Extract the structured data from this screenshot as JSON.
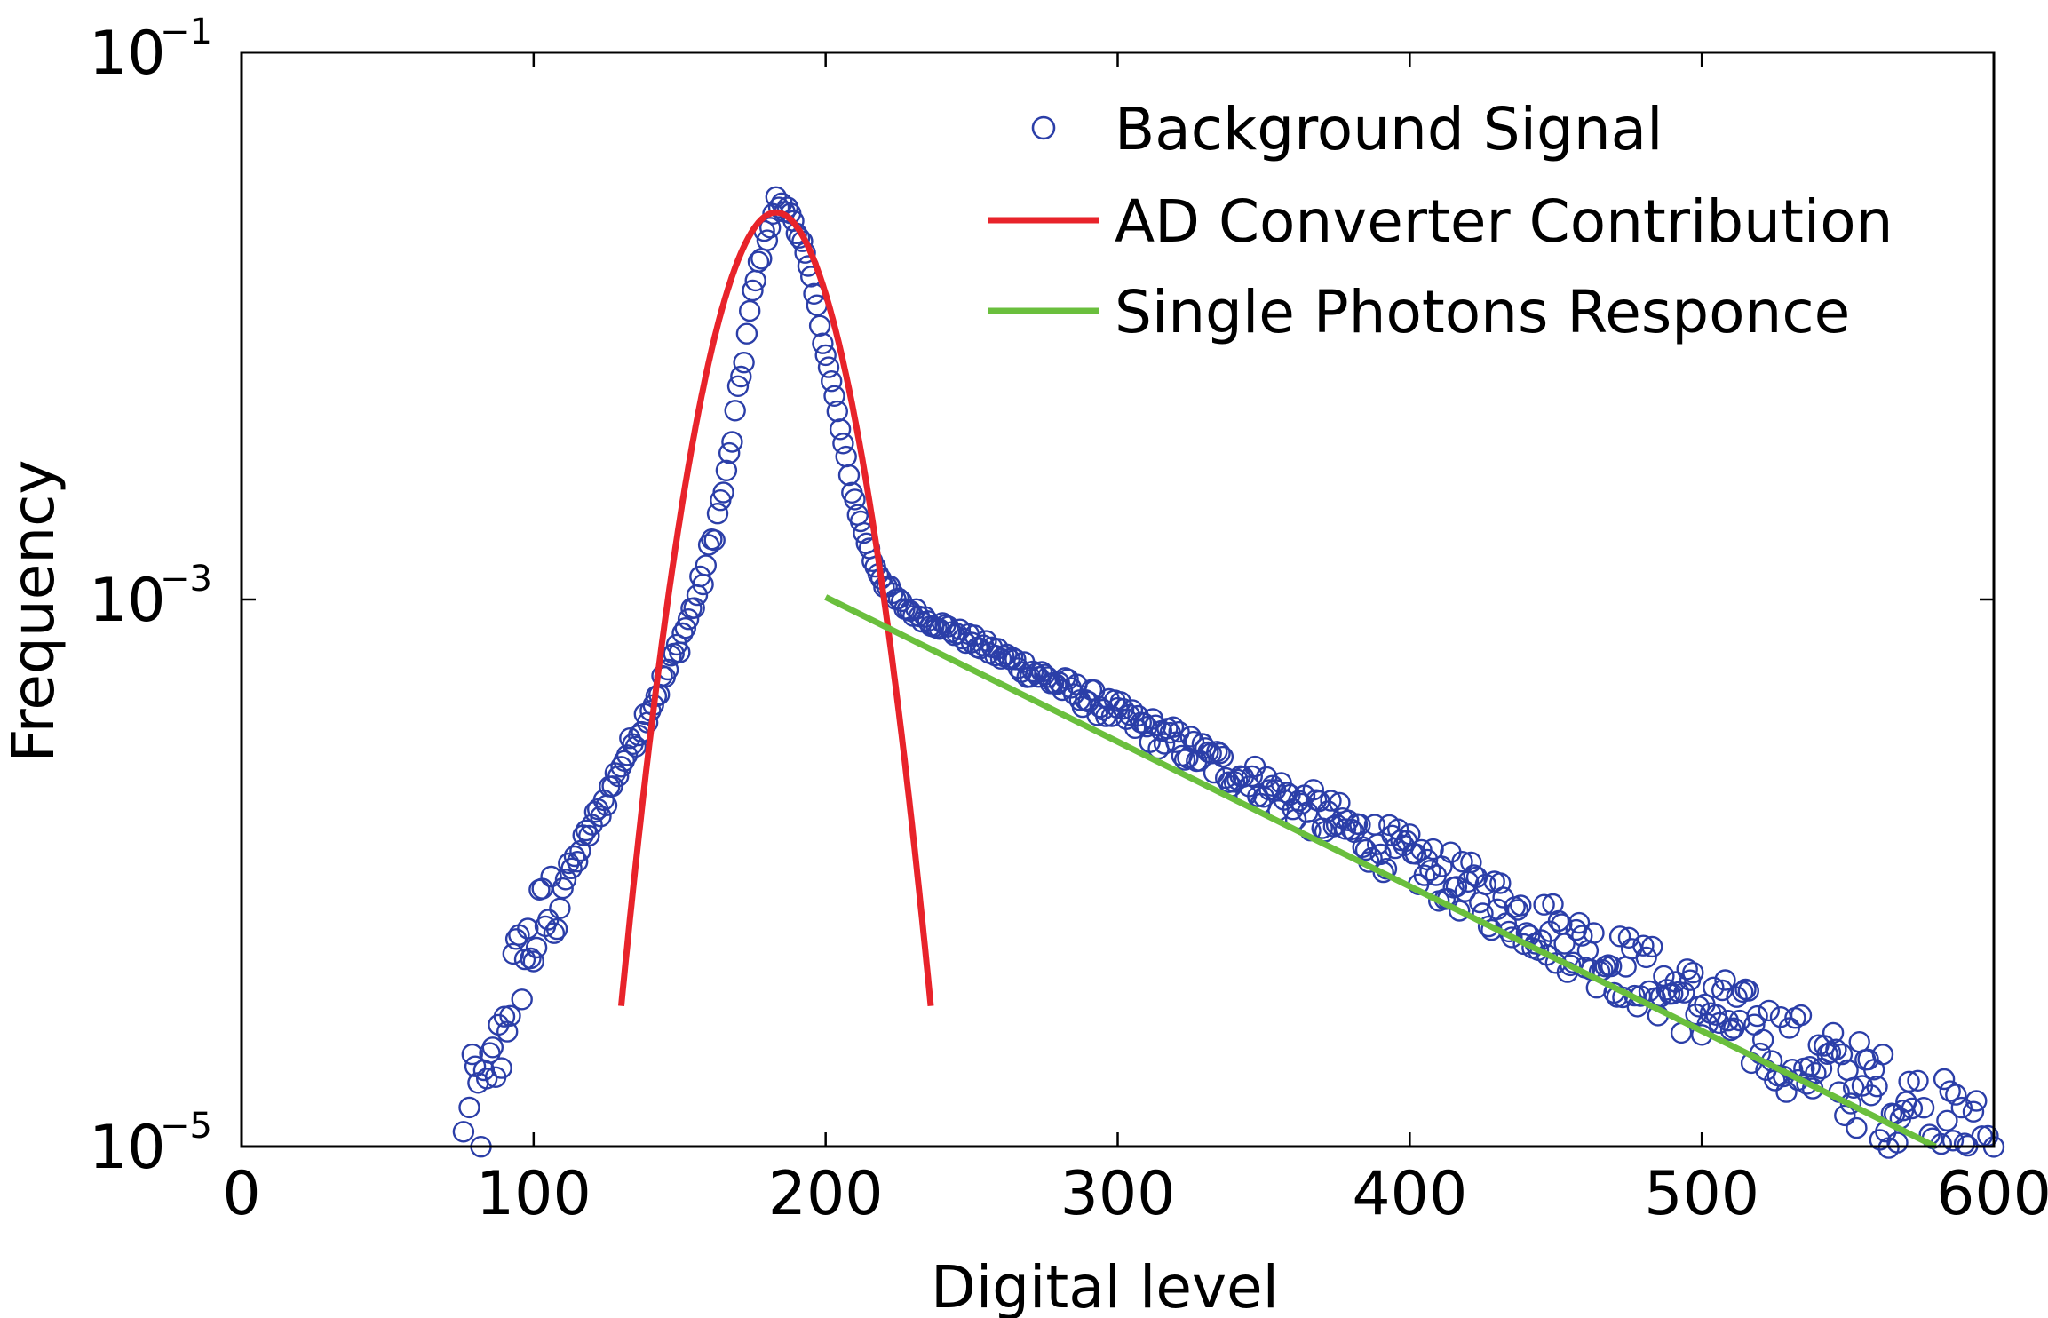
{
  "chart_data": {
    "type": "scatter",
    "xlabel": "Digital level",
    "ylabel": "Frequency",
    "xlim": [
      0,
      600
    ],
    "ylim": [
      1e-05,
      0.1
    ],
    "yscale": "log",
    "grid": false,
    "legend_position": "top-right",
    "x_ticks": [
      "0",
      "100",
      "200",
      "300",
      "400",
      "500",
      "600"
    ],
    "y_ticks": [
      {
        "base": "10",
        "exp": "−1",
        "value": 0.1
      },
      {
        "base": "10",
        "exp": "−3",
        "value": 0.001
      },
      {
        "base": "10",
        "exp": "−5",
        "value": 1e-05
      }
    ],
    "colors": {
      "background_signal": "#2b3ea8",
      "ad_converter": "#e8232a",
      "single_photons": "#6abf3d"
    },
    "series": [
      {
        "name": "Background Signal",
        "kind": "markers",
        "peak_x": 183,
        "peak_y": 0.028,
        "left_points": [
          [
            76,
            1e-05
          ],
          [
            78,
            1.25e-05
          ],
          [
            80,
            1.7e-05
          ],
          [
            82,
            1.3e-05
          ],
          [
            84,
            1.5e-05
          ],
          [
            86,
            1.9e-05
          ],
          [
            88,
            2.2e-05
          ],
          [
            90,
            2.8e-05
          ],
          [
            92,
            3.8e-05
          ],
          [
            95,
            4.5e-05
          ],
          [
            98,
            5.2e-05
          ],
          [
            102,
            6.2e-05
          ],
          [
            106,
            7.5e-05
          ],
          [
            110,
            9e-05
          ],
          [
            114,
            0.00011
          ],
          [
            118,
            0.000135
          ],
          [
            122,
            0.000165
          ],
          [
            126,
            0.0002
          ],
          [
            130,
            0.00025
          ],
          [
            134,
            0.0003
          ],
          [
            138,
            0.00037
          ],
          [
            142,
            0.00045
          ],
          [
            146,
            0.00055
          ],
          [
            150,
            0.0007
          ],
          [
            154,
            0.0009
          ],
          [
            158,
            0.0012
          ],
          [
            162,
            0.0018
          ],
          [
            166,
            0.0028
          ],
          [
            170,
            0.0055
          ],
          [
            174,
            0.011
          ],
          [
            178,
            0.019
          ],
          [
            183,
            0.028
          ]
        ],
        "right_points": [
          [
            183,
            0.028
          ],
          [
            188,
            0.026
          ],
          [
            192,
            0.02
          ],
          [
            196,
            0.013
          ],
          [
            200,
            0.008
          ],
          [
            204,
            0.0048
          ],
          [
            208,
            0.0028
          ],
          [
            212,
            0.0019
          ],
          [
            216,
            0.0014
          ],
          [
            220,
            0.00115
          ],
          [
            224,
            0.001
          ],
          [
            228,
            0.00092
          ],
          [
            232,
            0.00088
          ],
          [
            236,
            0.00083
          ],
          [
            240,
            0.0008
          ]
        ],
        "tail_model": {
          "x0": 240,
          "y0": 0.0008,
          "x1": 600,
          "y1": 9.5e-06
        }
      },
      {
        "name": "AD Converter Contribution",
        "kind": "line",
        "mean": 183,
        "sigma": 14.5,
        "amplitude": 0.026,
        "x_range": [
          130,
          236
        ]
      },
      {
        "name": "Single Photons Responce",
        "kind": "line",
        "x": [
          200,
          580
        ],
        "y": [
          0.00102,
          1e-05
        ]
      }
    ]
  }
}
